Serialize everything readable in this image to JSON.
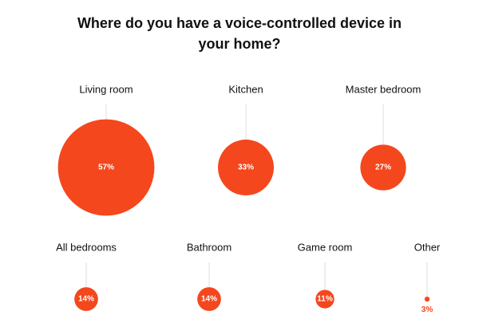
{
  "chart_data": {
    "type": "bubble",
    "title": "Where do you have a voice-controlled device in your home?",
    "categories": [
      "Living room",
      "Kitchen",
      "Master bedroom",
      "All bedrooms",
      "Bathroom",
      "Game room",
      "Other"
    ],
    "values": [
      57,
      33,
      27,
      14,
      14,
      11,
      3
    ],
    "value_labels": [
      "57%",
      "33%",
      "27%",
      "14%",
      "14%",
      "11%",
      "3%"
    ],
    "color": "#f4471d"
  }
}
